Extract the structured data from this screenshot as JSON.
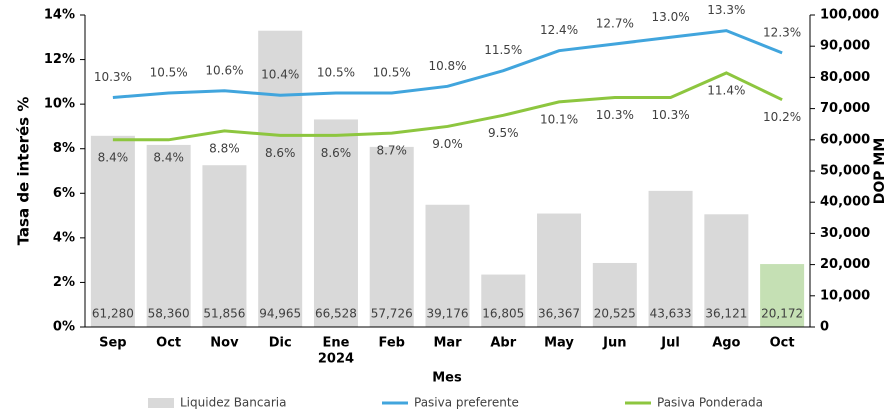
{
  "chart_data": {
    "type": "bar-line",
    "categories": [
      "Sep",
      "Oct",
      "Nov",
      "Dic",
      "Ene",
      "Feb",
      "Mar",
      "Abr",
      "May",
      "Jun",
      "Jul",
      "Ago",
      "Oct"
    ],
    "category_sublabels": [
      null,
      null,
      null,
      null,
      "2024",
      null,
      null,
      null,
      null,
      null,
      null,
      null,
      null
    ],
    "x_label": "Mes",
    "y_label": "Tasa de interés %",
    "y2_label": "DOP MM",
    "ylim": [
      0,
      14
    ],
    "yticks": [
      {
        "value": 0,
        "label": "0%"
      },
      {
        "value": 2,
        "label": "2%"
      },
      {
        "value": 4,
        "label": "4%"
      },
      {
        "value": 6,
        "label": "6%"
      },
      {
        "value": 8,
        "label": "8%"
      },
      {
        "value": 10,
        "label": "10%"
      },
      {
        "value": 12,
        "label": "12%"
      },
      {
        "value": 14,
        "label": "14%"
      }
    ],
    "y2lim": [
      0,
      100000
    ],
    "y2ticks": [
      0,
      {
        "value": 10000,
        "label": "10,000"
      },
      {
        "value": 20000,
        "label": "20,000"
      },
      {
        "value": 30000,
        "label": "30,000"
      },
      {
        "value": 40000,
        "label": "40,000"
      },
      {
        "value": 50000,
        "label": "50,000"
      },
      {
        "value": 60000,
        "label": "60,000"
      },
      {
        "value": 70000,
        "label": "70,000"
      },
      {
        "value": 80000,
        "label": "80,000"
      },
      {
        "value": 90000,
        "label": "90,000"
      },
      {
        "value": 100000,
        "label": "100,000"
      }
    ],
    "series": [
      {
        "name": "Liquidez Bancaria",
        "kind": "bar",
        "axis": "y2",
        "color": "#d9d9d9",
        "colors": [
          "#d9d9d9",
          "#d9d9d9",
          "#d9d9d9",
          "#d9d9d9",
          "#d9d9d9",
          "#d9d9d9",
          "#d9d9d9",
          "#d9d9d9",
          "#d9d9d9",
          "#d9d9d9",
          "#d9d9d9",
          "#d9d9d9",
          "#c5e0b4"
        ],
        "values": [
          61280,
          58360,
          51856,
          94965,
          66528,
          57726,
          39176,
          16805,
          36367,
          20525,
          43633,
          36121,
          20172
        ],
        "value_labels": [
          "61,280",
          "58,360",
          "51,856",
          "94,965",
          "66,528",
          "57,726",
          "39,176",
          "16,805",
          "36,367",
          "20,525",
          "43,633",
          "36,121",
          "20,172"
        ]
      },
      {
        "name": "Pasiva preferente",
        "kind": "line",
        "color": "#41a5dd",
        "values": [
          10.3,
          10.5,
          10.6,
          10.4,
          10.5,
          10.5,
          10.8,
          11.5,
          12.4,
          12.7,
          13.0,
          13.3,
          12.3
        ],
        "value_labels": [
          "10.3%",
          "10.5%",
          "10.6%",
          "10.4%",
          "10.5%",
          "10.5%",
          "10.8%",
          "11.5%",
          "12.4%",
          "12.7%",
          "13.0%",
          "13.3%",
          "12.3%"
        ]
      },
      {
        "name": "Pasiva Ponderada",
        "kind": "line",
        "color": "#8dc63f",
        "values": [
          8.4,
          8.4,
          8.8,
          8.6,
          8.6,
          8.7,
          9.0,
          9.5,
          10.1,
          10.3,
          10.3,
          11.4,
          10.2
        ],
        "value_labels": [
          "8.4%",
          "8.4%",
          "8.8%",
          "8.6%",
          "8.6%",
          "8.7%",
          "9.0%",
          "9.5%",
          "10.1%",
          "10.3%",
          "10.3%",
          "11.4%",
          "10.2%"
        ]
      }
    ]
  }
}
